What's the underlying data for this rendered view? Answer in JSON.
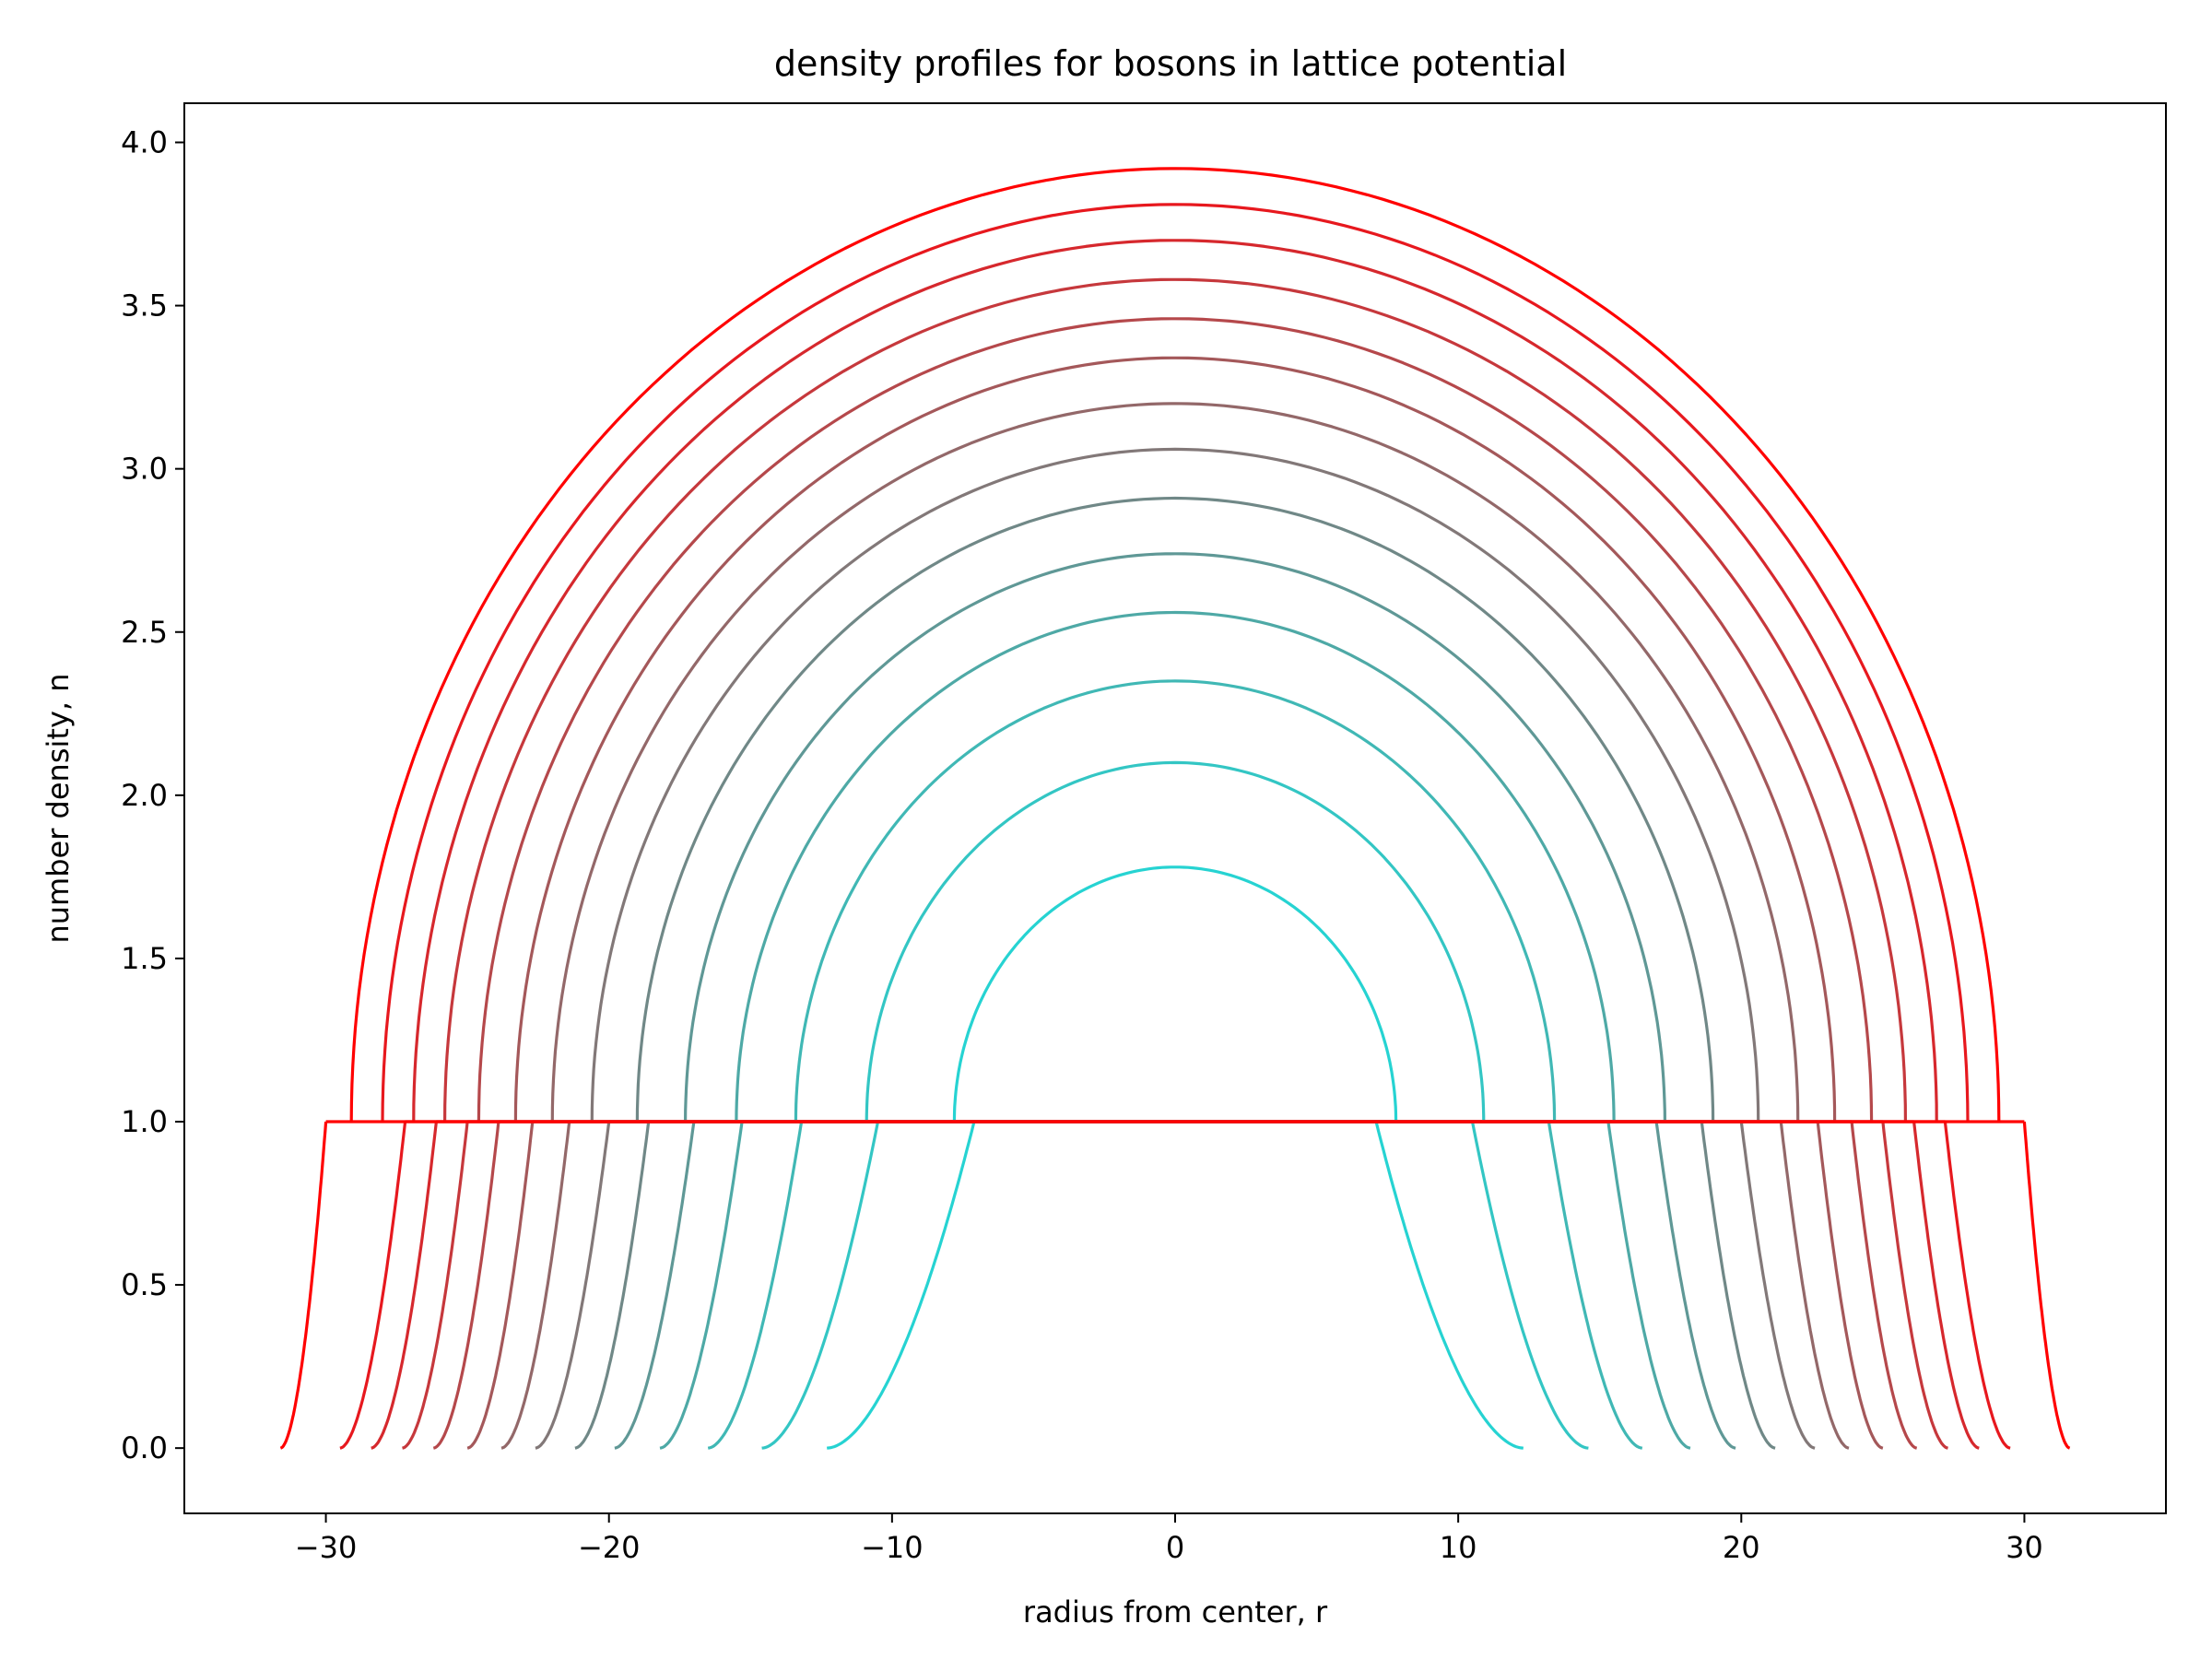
{
  "chart_data": {
    "type": "line",
    "title": "density profiles for bosons in lattice potential",
    "xlabel": "radius from center, r",
    "ylabel": "number density, n",
    "xlim": [
      -35,
      35
    ],
    "ylim": [
      -0.2,
      4.12
    ],
    "xticks": [
      -30,
      -20,
      -10,
      0,
      10,
      20,
      30
    ],
    "yticks": [
      0.0,
      0.5,
      1.0,
      1.5,
      2.0,
      2.5,
      3.0,
      3.5,
      4.0
    ],
    "xtick_labels": [
      "−30",
      "−20",
      "−10",
      "0",
      "10",
      "20",
      "30"
    ],
    "ytick_labels": [
      "0.0",
      "0.5",
      "1.0",
      "1.5",
      "2.0",
      "2.5",
      "3.0",
      "3.5",
      "4.0"
    ],
    "grid": false,
    "legend": "none",
    "color_gradient": [
      "#22d8d8",
      "#ff0000"
    ],
    "series": [
      {
        "peak": 1.78,
        "r_shell": 7.8,
        "r_plateau": 7.1,
        "r_edge": 12.3,
        "color": "#26d3d2"
      },
      {
        "peak": 2.1,
        "r_shell": 10.9,
        "r_plateau": 10.5,
        "r_edge": 14.6,
        "color": "#33c6c4"
      },
      {
        "peak": 2.35,
        "r_shell": 13.4,
        "r_plateau": 13.2,
        "r_edge": 16.5,
        "color": "#40b8b5"
      },
      {
        "peak": 2.56,
        "r_shell": 15.5,
        "r_plateau": 15.3,
        "r_edge": 18.2,
        "color": "#4ea9a6"
      },
      {
        "peak": 2.74,
        "r_shell": 17.3,
        "r_plateau": 17.0,
        "r_edge": 19.8,
        "color": "#5f9896"
      },
      {
        "peak": 2.91,
        "r_shell": 19.0,
        "r_plateau": 18.6,
        "r_edge": 21.2,
        "color": "#708887"
      },
      {
        "peak": 3.06,
        "r_shell": 20.6,
        "r_plateau": 20.0,
        "r_edge": 22.6,
        "color": "#827878"
      },
      {
        "peak": 3.2,
        "r_shell": 22.0,
        "r_plateau": 21.4,
        "r_edge": 23.8,
        "color": "#936869"
      },
      {
        "peak": 3.34,
        "r_shell": 23.3,
        "r_plateau": 22.7,
        "r_edge": 25.0,
        "color": "#a4585a"
      },
      {
        "peak": 3.46,
        "r_shell": 24.6,
        "r_plateau": 23.9,
        "r_edge": 26.2,
        "color": "#b5484b"
      },
      {
        "peak": 3.58,
        "r_shell": 25.8,
        "r_plateau": 25.0,
        "r_edge": 27.3,
        "color": "#c6383c"
      },
      {
        "peak": 3.7,
        "r_shell": 26.9,
        "r_plateau": 26.1,
        "r_edge": 28.4,
        "color": "#d6282d"
      },
      {
        "peak": 3.81,
        "r_shell": 28.0,
        "r_plateau": 27.2,
        "r_edge": 29.5,
        "color": "#e7181e"
      },
      {
        "peak": 3.92,
        "r_shell": 29.1,
        "r_plateau": 30.0,
        "r_edge": 31.6,
        "color": "#ff0000"
      }
    ]
  }
}
